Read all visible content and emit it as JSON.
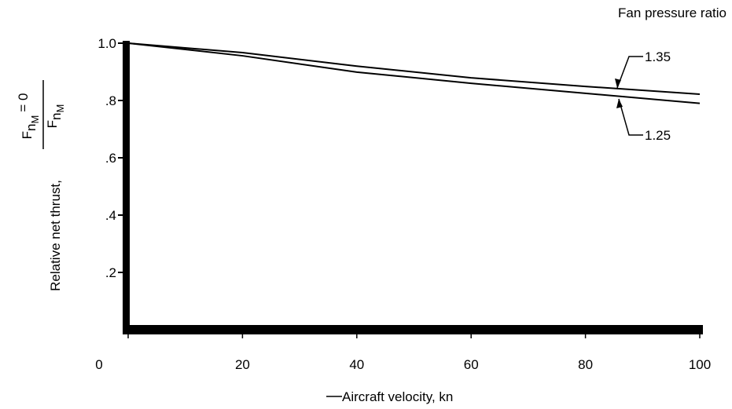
{
  "chart_data": {
    "type": "line",
    "legend_title": "Fan pressure ratio",
    "x_label": "Aircraft velocity, kn",
    "y_label": "Relative net thrust,",
    "y_label_fraction": {
      "numerator": [
        "F",
        "n",
        "M",
        "= 0"
      ],
      "denominator": [
        "F",
        "n",
        "M"
      ]
    },
    "x": [
      0,
      20,
      40,
      60,
      80,
      100
    ],
    "series": [
      {
        "name": "1.35",
        "color": "#000000",
        "values": [
          1.0,
          0.967,
          0.92,
          0.879,
          0.849,
          0.822
        ]
      },
      {
        "name": "1.25",
        "color": "#000000",
        "values": [
          1.0,
          0.956,
          0.899,
          0.86,
          0.825,
          0.79
        ]
      }
    ],
    "xlim": [
      0,
      100
    ],
    "xticks": [
      0,
      20,
      40,
      60,
      80,
      100
    ],
    "ylim": [
      0,
      1.0
    ],
    "yticks": [
      {
        "value": 0.2,
        "label": ".2"
      },
      {
        "value": 0.4,
        "label": ".4"
      },
      {
        "value": 0.6,
        "label": ".6"
      },
      {
        "value": 0.8,
        "label": ".8"
      },
      {
        "value": 1.0,
        "label": "1.0"
      }
    ],
    "grid": false
  }
}
